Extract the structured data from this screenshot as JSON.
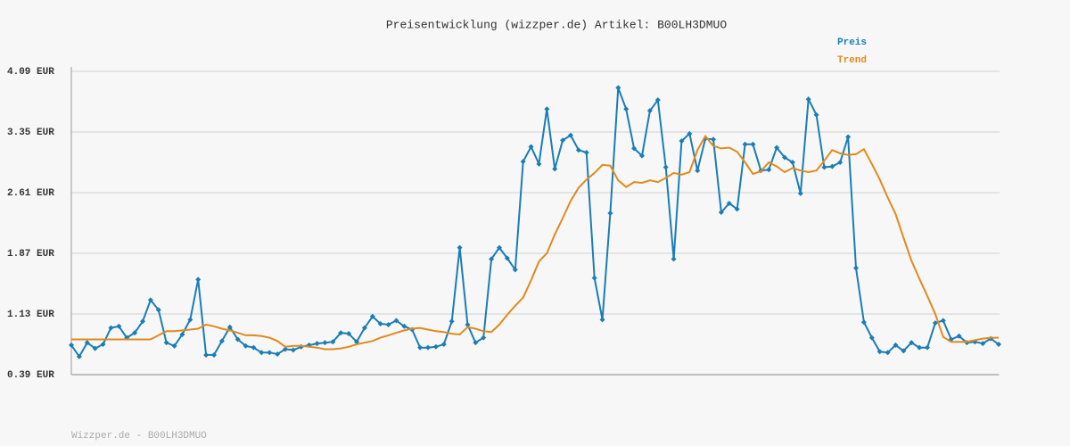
{
  "chart_data": {
    "type": "line",
    "title": "Preisentwicklung (wizzper.de) Artikel: B00LH3DMUO",
    "footer": "Wizzper.de - B00LH3DMUO",
    "ylim": [
      0.39,
      4.09
    ],
    "yticks": [
      {
        "value": 0.39,
        "label": "0.39 EUR"
      },
      {
        "value": 1.13,
        "label": "1.13 EUR"
      },
      {
        "value": 1.87,
        "label": "1.87 EUR"
      },
      {
        "value": 2.61,
        "label": "2.61 EUR"
      },
      {
        "value": 3.35,
        "label": "3.35 EUR"
      },
      {
        "value": 4.09,
        "label": "4.09 EUR"
      }
    ],
    "grid": true,
    "legend": "top-right",
    "series": [
      {
        "name": "Preis",
        "color": "#1a7db6",
        "markers": true,
        "values": [
          0.75,
          0.61,
          0.78,
          0.71,
          0.76,
          0.96,
          0.98,
          0.84,
          0.9,
          1.04,
          1.3,
          1.18,
          0.78,
          0.74,
          0.88,
          1.06,
          1.55,
          0.63,
          0.63,
          0.8,
          0.97,
          0.82,
          0.74,
          0.72,
          0.66,
          0.66,
          0.64,
          0.7,
          0.69,
          0.73,
          0.75,
          0.77,
          0.78,
          0.79,
          0.9,
          0.89,
          0.79,
          0.96,
          1.1,
          1.01,
          1.0,
          1.05,
          0.98,
          0.94,
          0.72,
          0.72,
          0.73,
          0.76,
          1.04,
          1.94,
          1.0,
          0.78,
          0.84,
          1.8,
          1.94,
          1.81,
          1.67,
          2.99,
          3.17,
          2.96,
          3.63,
          2.9,
          3.25,
          3.31,
          3.13,
          3.1,
          1.57,
          1.06,
          2.36,
          3.89,
          3.63,
          3.15,
          3.06,
          3.61,
          3.74,
          2.92,
          1.8,
          3.24,
          3.33,
          2.88,
          3.27,
          3.26,
          2.37,
          2.48,
          2.41,
          3.2,
          3.2,
          2.88,
          2.89,
          3.16,
          3.04,
          2.98,
          2.6,
          3.75,
          3.56,
          2.92,
          2.93,
          2.98,
          3.29,
          1.69,
          1.03,
          0.84,
          0.67,
          0.66,
          0.75,
          0.68,
          0.78,
          0.72,
          0.72,
          1.02,
          1.05,
          0.82,
          0.86,
          0.78,
          0.79,
          0.77,
          0.83,
          0.76
        ]
      },
      {
        "name": "Trend",
        "color": "#e08a1e",
        "markers": false,
        "values": [
          0.82,
          0.82,
          0.82,
          0.82,
          0.82,
          0.82,
          0.82,
          0.82,
          0.82,
          0.82,
          0.82,
          0.87,
          0.92,
          0.92,
          0.93,
          0.94,
          0.95,
          1.0,
          0.98,
          0.95,
          0.93,
          0.9,
          0.87,
          0.87,
          0.86,
          0.84,
          0.8,
          0.73,
          0.74,
          0.74,
          0.73,
          0.72,
          0.7,
          0.7,
          0.71,
          0.73,
          0.76,
          0.78,
          0.8,
          0.84,
          0.87,
          0.9,
          0.93,
          0.95,
          0.96,
          0.94,
          0.92,
          0.91,
          0.89,
          0.88,
          0.97,
          0.95,
          0.92,
          0.91,
          1.0,
          1.12,
          1.23,
          1.33,
          1.54,
          1.77,
          1.87,
          2.1,
          2.3,
          2.51,
          2.67,
          2.77,
          2.85,
          2.95,
          2.94,
          2.76,
          2.68,
          2.74,
          2.73,
          2.76,
          2.74,
          2.79,
          2.85,
          2.83,
          2.86,
          3.13,
          3.3,
          3.18,
          3.15,
          3.16,
          3.11,
          2.98,
          2.84,
          2.87,
          2.98,
          2.93,
          2.86,
          2.91,
          2.88,
          2.86,
          2.88,
          3.0,
          3.13,
          3.09,
          3.07,
          3.08,
          3.14,
          2.96,
          2.77,
          2.55,
          2.35,
          2.06,
          1.78,
          1.56,
          1.35,
          1.13,
          0.85,
          0.79,
          0.79,
          0.79,
          0.81,
          0.83,
          0.84,
          0.84
        ]
      }
    ]
  }
}
